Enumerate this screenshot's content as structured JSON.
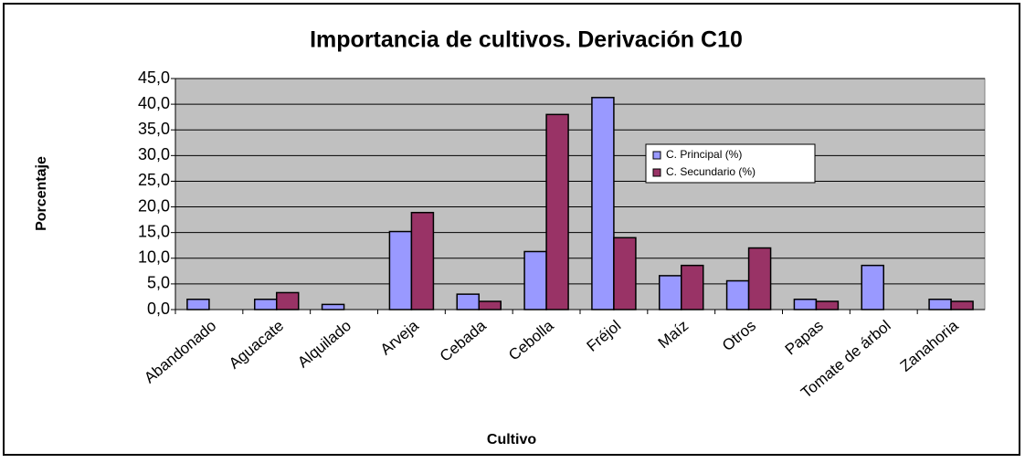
{
  "chart_data": {
    "type": "bar",
    "title": "Importancia de cultivos. Derivación C10",
    "x_label": "Cultivo",
    "y_label": "Porcentaje",
    "categories": [
      "Abandonado",
      "Aguacate",
      "Alquilado",
      "Arveja",
      "Cebada",
      "Cebolla",
      "Fréjol",
      "Maíz",
      "Otros",
      "Papas",
      "Tomate de árbol",
      "Zanahoria"
    ],
    "series": [
      {
        "name": "C. Principal (%)",
        "color": "#9999ff",
        "values": [
          2.0,
          2.0,
          1.0,
          15.2,
          3.0,
          11.3,
          41.3,
          6.6,
          5.6,
          2.0,
          8.6,
          2.0
        ]
      },
      {
        "name": "C. Secundario (%)",
        "color": "#993366",
        "values": [
          0,
          3.3,
          0,
          18.9,
          1.6,
          38.0,
          14.0,
          8.6,
          12.0,
          1.6,
          0,
          1.6
        ]
      }
    ],
    "ylim": [
      0,
      45
    ],
    "yticks": [
      {
        "value": 0,
        "label": "0,0"
      },
      {
        "value": 5,
        "label": "5,0"
      },
      {
        "value": 10,
        "label": "10,0"
      },
      {
        "value": 15,
        "label": "15,0"
      },
      {
        "value": 20,
        "label": "20,0"
      },
      {
        "value": 25,
        "label": "25,0"
      },
      {
        "value": 30,
        "label": "30,0"
      },
      {
        "value": 35,
        "label": "35,0"
      },
      {
        "value": 40,
        "label": "40,0"
      },
      {
        "value": 45,
        "label": "45,0"
      }
    ],
    "grid": true,
    "legend": "upper right"
  }
}
